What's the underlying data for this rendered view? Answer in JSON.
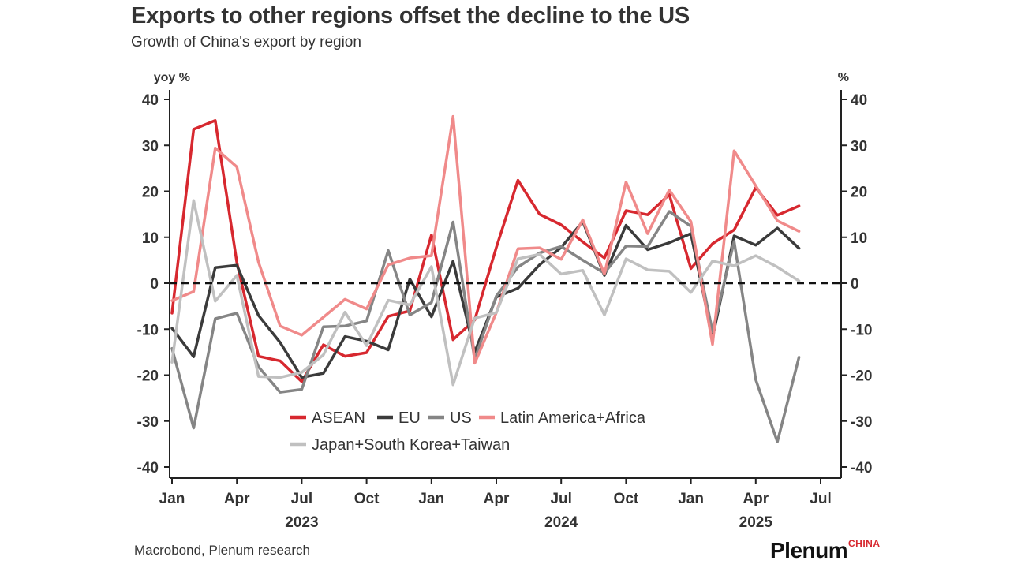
{
  "header": {
    "title": "Exports to other regions offset the decline to the US",
    "subtitle": "Growth of China's export by region"
  },
  "footer": {
    "source": "Macrobond, Plenum research",
    "brand": "Plenum",
    "brand_sub": "CHINA"
  },
  "chart_data": {
    "type": "line",
    "y_label_left": "yoy %",
    "y_label_right": "%",
    "ylim": [
      -40,
      40
    ],
    "yticks": [
      40,
      30,
      20,
      10,
      0,
      -10,
      -20,
      -30,
      -40
    ],
    "ytick_labels": [
      "40",
      "30",
      "20",
      "10",
      "0",
      "-10",
      "-20",
      "-30",
      "-40"
    ],
    "x_start": "2023-01",
    "x_end": "2025-07",
    "xticks": [
      {
        "label": "Jan",
        "year_label": "",
        "month": "2023-01"
      },
      {
        "label": "Apr",
        "year_label": "",
        "month": "2023-04"
      },
      {
        "label": "Jul",
        "year_label": "2023",
        "month": "2023-07"
      },
      {
        "label": "Oct",
        "year_label": "",
        "month": "2023-10"
      },
      {
        "label": "Jan",
        "year_label": "",
        "month": "2024-01"
      },
      {
        "label": "Apr",
        "year_label": "",
        "month": "2024-04"
      },
      {
        "label": "Jul",
        "year_label": "2024",
        "month": "2024-07"
      },
      {
        "label": "Oct",
        "year_label": "",
        "month": "2024-10"
      },
      {
        "label": "Jan",
        "year_label": "",
        "month": "2025-01"
      },
      {
        "label": "Apr",
        "year_label": "2025",
        "month": "2025-04"
      },
      {
        "label": "Jul",
        "year_label": "",
        "month": "2025-07"
      }
    ],
    "reference_line": {
      "y": 0,
      "style": "dashed"
    },
    "grid": false,
    "legend_position": "bottom-center",
    "x": [
      "2023-01",
      "2023-02",
      "2023-03",
      "2023-04",
      "2023-05",
      "2023-06",
      "2023-07",
      "2023-08",
      "2023-09",
      "2023-10",
      "2023-11",
      "2023-12",
      "2024-01",
      "2024-02",
      "2024-03",
      "2024-04",
      "2024-05",
      "2024-06",
      "2024-07",
      "2024-08",
      "2024-09",
      "2024-10",
      "2024-11",
      "2024-12",
      "2025-01",
      "2025-02",
      "2025-03",
      "2025-04",
      "2025-05",
      "2025-06"
    ],
    "series": [
      {
        "name": "ASEAN",
        "color": "#d7282f",
        "width": 3.5,
        "values": [
          -6.5,
          33.5,
          35.4,
          4.5,
          -15.9,
          -16.9,
          -21.4,
          -13.4,
          -15.9,
          -15.1,
          -7.2,
          -6.0,
          10.5,
          -12.3,
          -8.0,
          7.8,
          22.4,
          15.0,
          12.7,
          9.0,
          5.5,
          15.8,
          14.9,
          19.3,
          3.2,
          8.6,
          11.6,
          20.8,
          14.8,
          16.8
        ]
      },
      {
        "name": "EU",
        "color": "#3b3b3b",
        "width": 3.5,
        "values": [
          -9.8,
          -16.0,
          3.4,
          3.9,
          -7.0,
          -12.9,
          -20.5,
          -19.6,
          -11.6,
          -12.6,
          -14.5,
          0.9,
          -7.3,
          4.8,
          -15.0,
          -3.0,
          -1.1,
          4.0,
          7.8,
          13.4,
          1.7,
          12.6,
          7.3,
          8.8,
          10.8,
          -11.9,
          10.3,
          8.3,
          12.0,
          7.6
        ]
      },
      {
        "name": "US",
        "color": "#858585",
        "width": 3.5,
        "values": [
          -14.2,
          -31.5,
          -7.7,
          -6.5,
          -18.2,
          -23.7,
          -23.1,
          -9.5,
          -9.3,
          -8.2,
          7.1,
          -6.9,
          -4.2,
          13.3,
          -16.6,
          -2.8,
          3.5,
          6.6,
          8.0,
          5.0,
          2.2,
          8.1,
          8.0,
          15.6,
          12.4,
          -10.5,
          9.1,
          -21.0,
          -34.5,
          -16.1
        ]
      },
      {
        "name": "Latin America+Africa",
        "color": "#f08a8a",
        "width": 3.5,
        "values": [
          -3.8,
          -1.8,
          29.4,
          25.3,
          4.6,
          -9.3,
          -11.3,
          -7.4,
          -3.5,
          -5.6,
          4.0,
          5.5,
          6.0,
          36.3,
          -17.4,
          -6.4,
          7.5,
          7.7,
          5.2,
          13.8,
          2.0,
          22.0,
          10.8,
          20.3,
          13.4,
          -13.3,
          28.8,
          21.2,
          13.6,
          11.3
        ]
      },
      {
        "name": "Japan+South Korea+Taiwan",
        "color": "#c0c0c0",
        "width": 3.5,
        "values": [
          -17.2,
          18.0,
          -3.9,
          1.7,
          -20.3,
          -20.5,
          -19.4,
          -15.6,
          -6.3,
          -13.6,
          -3.7,
          -4.7,
          3.6,
          -22.1,
          -7.6,
          -6.4,
          5.3,
          6.3,
          2.0,
          2.8,
          -6.9,
          5.3,
          2.9,
          2.6,
          -2.0,
          4.8,
          3.8,
          6.0,
          3.5,
          0.5
        ]
      }
    ]
  }
}
